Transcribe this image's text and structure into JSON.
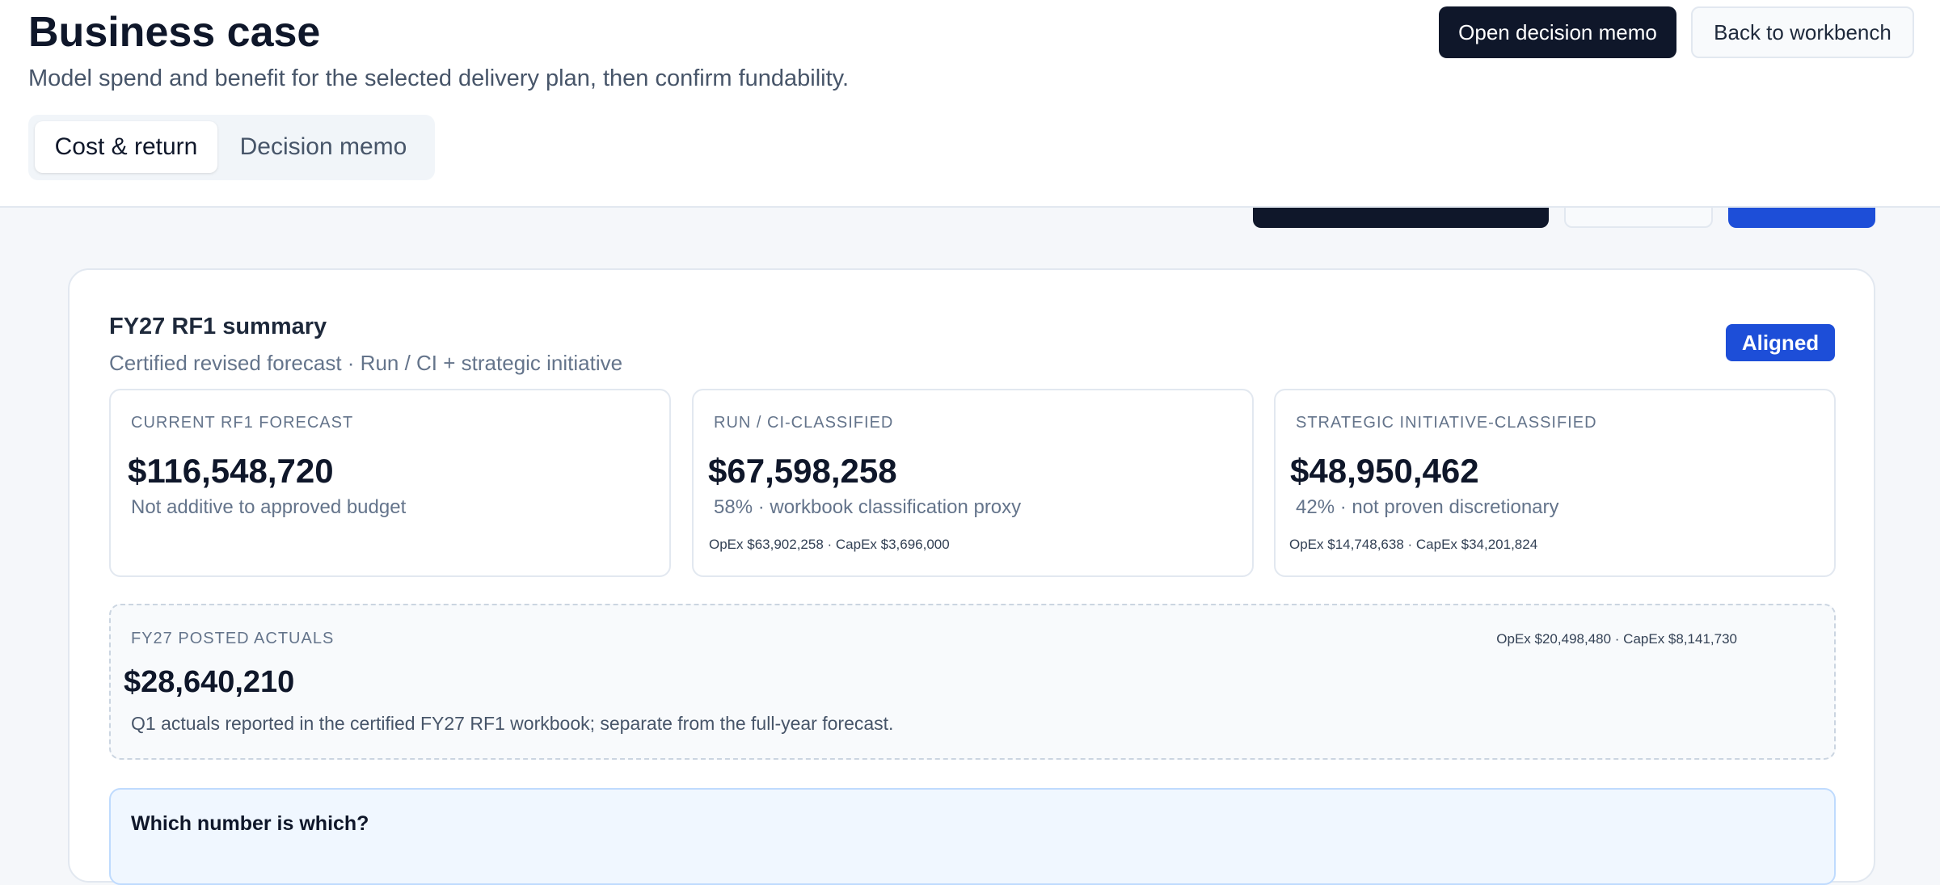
{
  "header": {
    "title": "Business case",
    "subtitle": "Model spend and benefit for the selected delivery plan, then confirm fundability.",
    "buttons": [
      "Open decision memo",
      "Back to workbench"
    ]
  },
  "tabs": [
    "Cost & return",
    "Decision memo"
  ],
  "summary": {
    "title": "FY27 RF1 summary",
    "subtitle": "Certified revised forecast · Run / CI + strategic initiative",
    "badge": "Aligned",
    "cards": [
      {
        "label": "CURRENT RF1 FORECAST",
        "value": "$116,548,720",
        "note": "Not additive to approved budget"
      },
      {
        "label": "RUN / CI-CLASSIFIED",
        "value": "$67,598,258",
        "note": "58% · workbook classification proxy",
        "split": "OpEx $63,902,258 · CapEx $3,696,000"
      },
      {
        "label": "STRATEGIC INITIATIVE-CLASSIFIED",
        "value": "$48,950,462",
        "note": "42% · not proven discretionary",
        "split": "OpEx $14,748,638 · CapEx $34,201,824"
      }
    ],
    "actuals": {
      "label": "FY27 POSTED ACTUALS",
      "split": "OpEx $20,498,480 · CapEx $8,141,730",
      "value": "$28,640,210",
      "note": "Q1 actuals reported in the certified FY27 RF1 workbook; separate from the full-year forecast."
    },
    "help": {
      "title": "Which number is which?"
    }
  }
}
